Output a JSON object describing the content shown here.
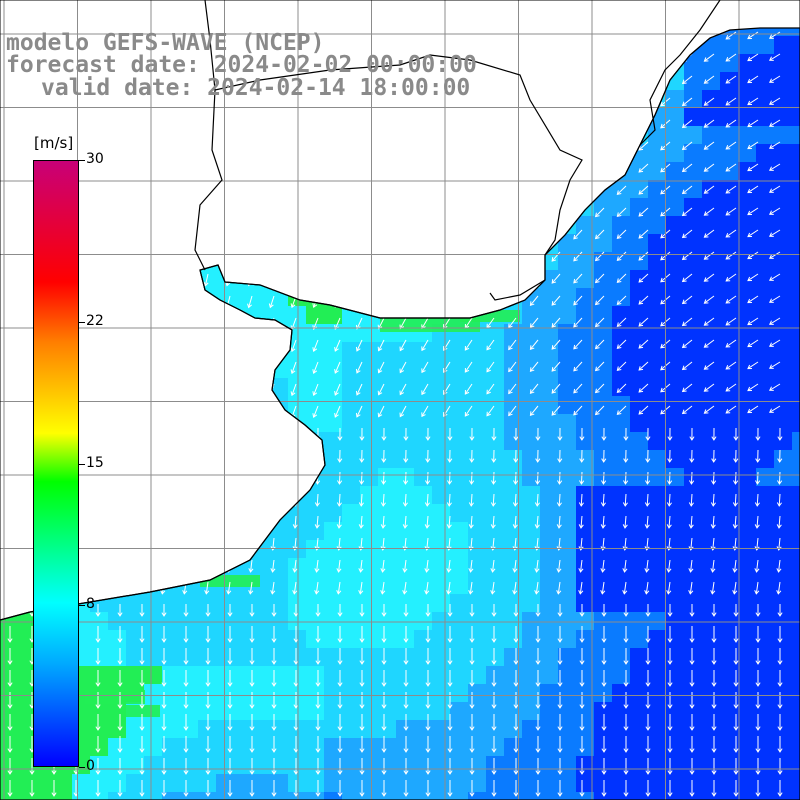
{
  "title": {
    "line1": "modelo GEFS-WAVE (NCEP)",
    "line2": "forecast date: 2024-02-02 00:00:00",
    "line3": "valid date: 2024-02-14 18:00:00"
  },
  "colorbar": {
    "unit": "[m/s]",
    "ticks": [
      {
        "label": "30",
        "value": 30
      },
      {
        "label": "22",
        "value": 22
      },
      {
        "label": "15",
        "value": 15
      },
      {
        "label": "8",
        "value": 8
      },
      {
        "label": "0",
        "value": 0
      }
    ],
    "min": 0,
    "max": 30
  },
  "colors": {
    "land": "#ffffff",
    "coast": "#000000",
    "grid": "#8c8c8c",
    "arrow": "#ffffff",
    "deep_blue": "#0033ff",
    "mid_blue": "#0a7bff",
    "light_blue": "#1ea8ff",
    "cyan": "#1fd6ff",
    "aqua": "#24f0ff",
    "green": "#22ee55"
  }
}
